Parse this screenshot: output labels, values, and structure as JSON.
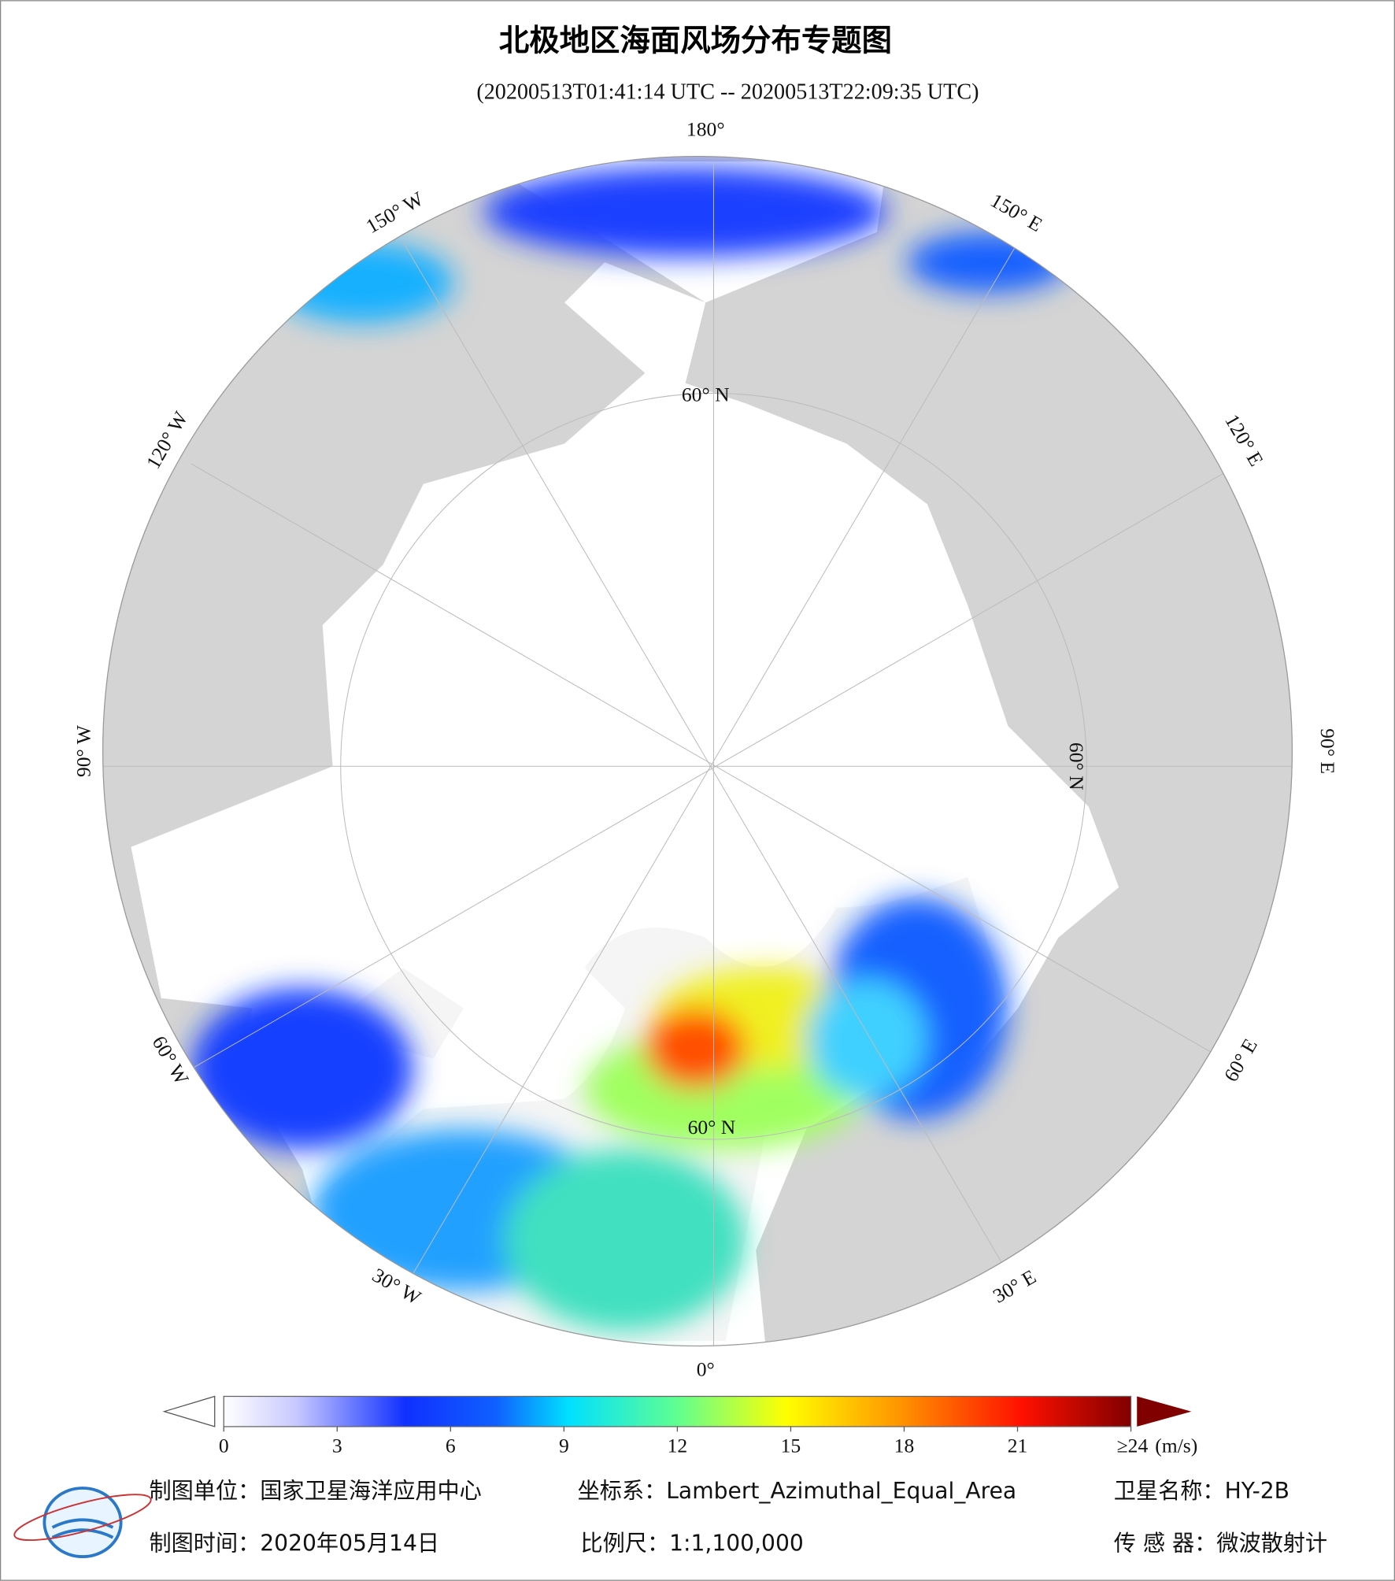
{
  "header": {
    "title": "北极地区海面风场分布专题图",
    "subtitle": "(20200513T01:41:14 UTC -- 20200513T22:09:35 UTC)"
  },
  "map": {
    "meridian_labels": [
      "180°",
      "150° E",
      "120° E",
      "90° E",
      "60° E",
      "30° E",
      "0°",
      "30° W",
      "60° W",
      "90° W",
      "120° W",
      "150° W"
    ],
    "parallel_labels": [
      "60° N",
      "60° N",
      "60° N"
    ]
  },
  "colorbar": {
    "lim": [
      0,
      24
    ],
    "ticks": [
      0,
      3,
      6,
      9,
      12,
      15,
      18,
      21,
      {
        "value": 24,
        "label": "≥24"
      }
    ],
    "unit": "(m/s)"
  },
  "footer": {
    "unit": "制图单位：国家卫星海洋应用中心",
    "projection": "坐标系：Lambert_Azimuthal_Equal_Area",
    "satellite": "卫星名称：HY-2B",
    "date": "制图时间：2020年05月14日",
    "scale": "比例尺：1:1,100,000",
    "sensor": "传 感 器：微波散射计"
  }
}
